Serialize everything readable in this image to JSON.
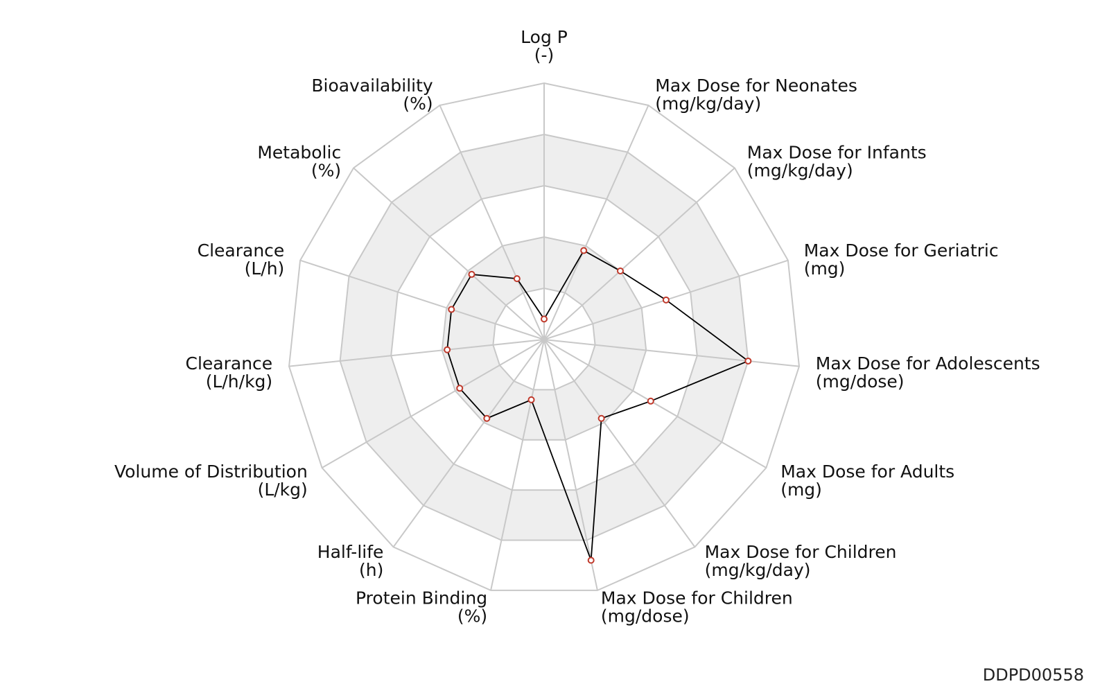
{
  "chart_data": {
    "type": "radar",
    "rings": 5,
    "range": [
      0,
      5
    ],
    "grid": true,
    "axes": [
      {
        "name": "Log P",
        "unit": "(-)"
      },
      {
        "name": "Max Dose for Neonates",
        "unit": "(mg/kg/day)"
      },
      {
        "name": "Max Dose for Infants",
        "unit": "(mg/kg/day)"
      },
      {
        "name": "Max Dose for Geriatric",
        "unit": "(mg)"
      },
      {
        "name": "Max Dose for Adolescents",
        "unit": "(mg/dose)"
      },
      {
        "name": "Max Dose for Adults",
        "unit": "(mg)"
      },
      {
        "name": "Max Dose for Children",
        "unit": "(mg/kg/day)"
      },
      {
        "name": "Max Dose for Children",
        "unit": "(mg/dose)"
      },
      {
        "name": "Protein Binding",
        "unit": "(%)"
      },
      {
        "name": "Half-life",
        "unit": "(h)"
      },
      {
        "name": "Volume of Distribution",
        "unit": "(L/kg)"
      },
      {
        "name": "Clearance",
        "unit": "(L/h/kg)"
      },
      {
        "name": "Clearance",
        "unit": "(L/h)"
      },
      {
        "name": "Metabolic",
        "unit": "(%)"
      },
      {
        "name": "Bioavailability",
        "unit": "(%)"
      }
    ],
    "values": [
      0.4,
      1.9,
      2.0,
      2.5,
      4.0,
      2.4,
      1.9,
      4.4,
      1.2,
      1.9,
      1.9,
      1.9,
      1.9,
      1.9,
      1.3
    ],
    "colors": {
      "line": "#000000",
      "marker_stroke": "#c0392b",
      "marker_fill": "#ffffff",
      "grid": "#c8c8c8",
      "band": "#eeeeee"
    }
  },
  "footer": {
    "id": "DDPD00558"
  }
}
